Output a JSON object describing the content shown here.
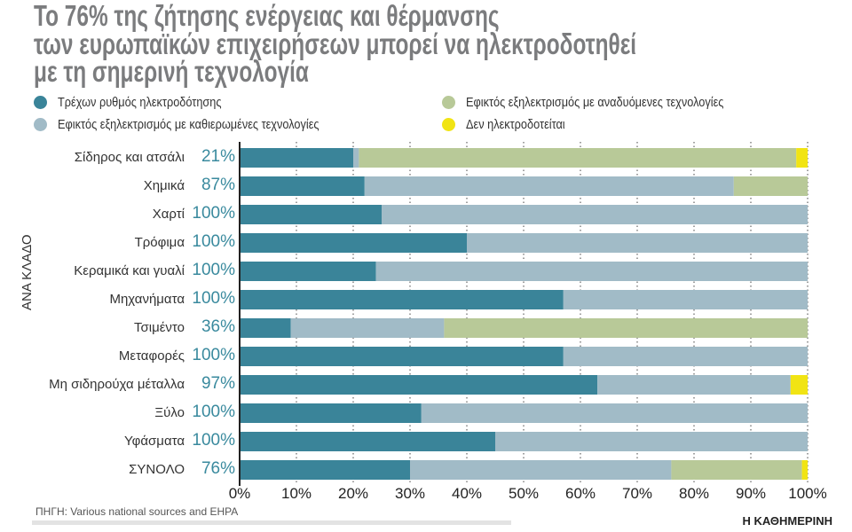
{
  "title_lines": [
    "Το 76% της ζήτησης ενέργειας και θέρμανσης",
    "των ευρωπαϊκών επιχειρήσεων μπορεί να ηλεκτροδοτηθεί",
    "με τη σημερινή τεχνολογία"
  ],
  "source": "ΠΗΓΗ: Various national sources and EHPA",
  "logo": "Η ΚΑΘΗΜΕΡΙΝΗ",
  "chart_data": {
    "type": "bar",
    "orientation": "horizontal",
    "stacked": true,
    "ylabel": "ΑΝΑ ΚΛΑΔΟ",
    "xlim": [
      0,
      100
    ],
    "x_ticks": [
      "0%",
      "10%",
      "20%",
      "30%",
      "40%",
      "50%",
      "60%",
      "70%",
      "80%",
      "90%",
      "100%"
    ],
    "grid": "vertical dotted",
    "legend_position": "top",
    "categories": [
      "Σίδηρος και ατσάλι",
      "Χημικά",
      "Χαρτί",
      "Τρόφιμα",
      "Κεραμικά και γυαλί",
      "Μηχανήματα",
      "Τσιμέντο",
      "Μεταφορές",
      "Μη σιδηρούχα μέταλλα",
      "Ξύλο",
      "Υφάσματα",
      "ΣΥΝΟΛΟ"
    ],
    "category_labels": [
      "21%",
      "87%",
      "100%",
      "100%",
      "100%",
      "100%",
      "36%",
      "100%",
      "97%",
      "100%",
      "100%",
      "76%"
    ],
    "series": [
      {
        "name": "Τρέχων ρυθμός ηλεκτροδότησης",
        "color": "#3a8499",
        "values": [
          20,
          22,
          25,
          40,
          24,
          57,
          9,
          57,
          63,
          32,
          45,
          30
        ]
      },
      {
        "name": "Εφικτός εξηλεκτρισμός με καθιερωμένες τεχνολογίες",
        "color": "#a1bbc7",
        "values": [
          1,
          65,
          75,
          60,
          76,
          43,
          27,
          43,
          34,
          68,
          55,
          46
        ]
      },
      {
        "name": "Εφικτός εξηλεκτρισμός με αναδυόμενες τεχνολογίες",
        "color": "#b8c998",
        "values": [
          77,
          13,
          0,
          0,
          0,
          0,
          64,
          0,
          0,
          0,
          0,
          23
        ]
      },
      {
        "name": "Δεν ηλεκτροδοτείται",
        "color": "#f1e414",
        "values": [
          2,
          0,
          0,
          0,
          0,
          0,
          0,
          0,
          3,
          0,
          0,
          1
        ]
      }
    ]
  }
}
